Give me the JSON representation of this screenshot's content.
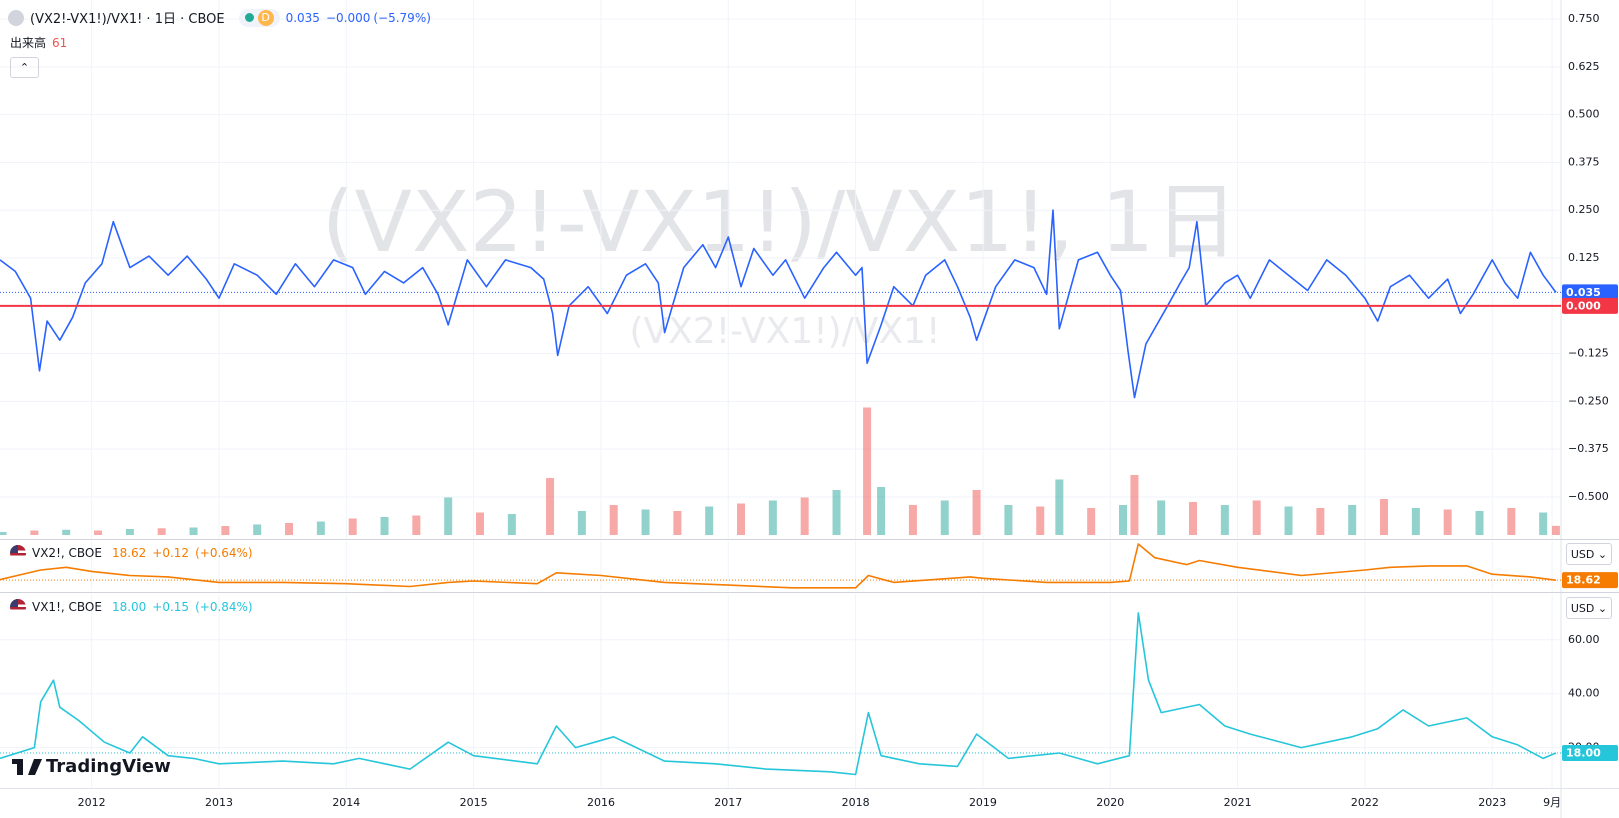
{
  "header": {
    "title": "(VX2!-VX1!)/VX1! · 1日 · CBOE",
    "interval_badge": "D",
    "last": "0.035",
    "change": "−0.000",
    "change_pct": "(−5.79%)",
    "volume_label": "出来高",
    "volume_last": "61"
  },
  "brand": "TradingView",
  "chart_data": [
    {
      "type": "line",
      "title": "(VX2!-VX1!)/VX1!, 1日",
      "x": [
        2011.28,
        2011.4,
        2011.52,
        2011.59,
        2011.65,
        2011.75,
        2011.85,
        2011.95,
        2012.08,
        2012.17,
        2012.3,
        2012.45,
        2012.6,
        2012.75,
        2012.9,
        2013.0,
        2013.12,
        2013.3,
        2013.45,
        2013.6,
        2013.75,
        2013.9,
        2014.05,
        2014.15,
        2014.3,
        2014.45,
        2014.6,
        2014.72,
        2014.8,
        2014.95,
        2015.1,
        2015.25,
        2015.45,
        2015.55,
        2015.62,
        2015.66,
        2015.75,
        2015.9,
        2016.05,
        2016.2,
        2016.35,
        2016.45,
        2016.5,
        2016.65,
        2016.8,
        2016.9,
        2017.0,
        2017.1,
        2017.2,
        2017.35,
        2017.45,
        2017.6,
        2017.75,
        2017.85,
        2018.0,
        2018.05,
        2018.09,
        2018.2,
        2018.3,
        2018.45,
        2018.55,
        2018.7,
        2018.8,
        2018.9,
        2018.95,
        2019.1,
        2019.25,
        2019.4,
        2019.5,
        2019.55,
        2019.6,
        2019.75,
        2019.9,
        2020.0,
        2020.08,
        2020.14,
        2020.19,
        2020.28,
        2020.45,
        2020.55,
        2020.62,
        2020.68,
        2020.75,
        2020.9,
        2021.0,
        2021.1,
        2021.25,
        2021.4,
        2021.55,
        2021.7,
        2021.85,
        2022.0,
        2022.1,
        2022.2,
        2022.35,
        2022.5,
        2022.65,
        2022.75,
        2022.85,
        2023.0,
        2023.1,
        2023.2,
        2023.3,
        2023.4,
        2023.5
      ],
      "xlim": [
        2011.28,
        2023.54
      ],
      "series": [
        {
          "name": "(VX2!-VX1!)/VX1!",
          "color": "#2962ff",
          "values": [
            0.12,
            0.09,
            0.02,
            -0.17,
            -0.04,
            -0.09,
            -0.03,
            0.06,
            0.11,
            0.22,
            0.1,
            0.13,
            0.08,
            0.13,
            0.07,
            0.02,
            0.11,
            0.08,
            0.03,
            0.11,
            0.05,
            0.12,
            0.1,
            0.03,
            0.09,
            0.06,
            0.1,
            0.03,
            -0.05,
            0.12,
            0.05,
            0.12,
            0.1,
            0.07,
            -0.02,
            -0.13,
            0.0,
            0.05,
            -0.02,
            0.08,
            0.11,
            0.06,
            -0.07,
            0.1,
            0.16,
            0.1,
            0.18,
            0.05,
            0.15,
            0.08,
            0.12,
            0.02,
            0.1,
            0.14,
            0.08,
            0.1,
            -0.15,
            -0.05,
            0.05,
            0.0,
            0.08,
            0.12,
            0.05,
            -0.03,
            -0.09,
            0.05,
            0.12,
            0.1,
            0.03,
            0.25,
            -0.06,
            0.12,
            0.14,
            0.08,
            0.04,
            -0.12,
            -0.24,
            -0.1,
            0.0,
            0.06,
            0.1,
            0.22,
            0.0,
            0.06,
            0.08,
            0.02,
            0.12,
            0.08,
            0.04,
            0.12,
            0.08,
            0.02,
            -0.04,
            0.05,
            0.08,
            0.02,
            0.07,
            -0.02,
            0.03,
            0.12,
            0.06,
            0.02,
            0.14,
            0.08,
            0.035
          ]
        }
      ],
      "ylim": [
        -0.61,
        0.8
      ],
      "yticks": [
        {
          "value": 0.75,
          "label": "0.750"
        },
        {
          "value": 0.625,
          "label": "0.625"
        },
        {
          "value": 0.5,
          "label": "0.500"
        },
        {
          "value": 0.375,
          "label": "0.375"
        },
        {
          "value": 0.25,
          "label": "0.250"
        },
        {
          "value": 0.125,
          "label": "0.125"
        },
        {
          "value": -0.125,
          "label": "−0.125"
        },
        {
          "value": -0.25,
          "label": "−0.250"
        },
        {
          "value": -0.375,
          "label": "−0.375"
        },
        {
          "value": -0.5,
          "label": "−0.500"
        }
      ],
      "hline": {
        "value": 0,
        "label": "0.000",
        "color": "#f23645"
      },
      "volume": {
        "name": "出来高",
        "up_color": "#26a69a",
        "down_color": "#ef5350",
        "ylim": [
          0,
          1000
        ],
        "x": [
          2011.3,
          2011.55,
          2011.8,
          2012.05,
          2012.3,
          2012.55,
          2012.8,
          2013.05,
          2013.3,
          2013.55,
          2013.8,
          2014.05,
          2014.3,
          2014.55,
          2014.8,
          2015.05,
          2015.3,
          2015.6,
          2015.85,
          2016.1,
          2016.35,
          2016.6,
          2016.85,
          2017.1,
          2017.35,
          2017.6,
          2017.85,
          2018.09,
          2018.2,
          2018.45,
          2018.7,
          2018.95,
          2019.2,
          2019.45,
          2019.6,
          2019.85,
          2020.1,
          2020.19,
          2020.4,
          2020.65,
          2020.9,
          2021.15,
          2021.4,
          2021.65,
          2021.9,
          2022.15,
          2022.4,
          2022.65,
          2022.9,
          2023.15,
          2023.4,
          2023.5
        ],
        "values": [
          20,
          30,
          35,
          30,
          40,
          45,
          50,
          60,
          70,
          80,
          90,
          110,
          120,
          130,
          250,
          150,
          140,
          380,
          160,
          200,
          170,
          160,
          190,
          210,
          230,
          250,
          300,
          850,
          320,
          200,
          230,
          300,
          200,
          190,
          370,
          180,
          200,
          400,
          230,
          220,
          200,
          230,
          190,
          180,
          200,
          240,
          180,
          170,
          160,
          180,
          150,
          61
        ]
      }
    },
    {
      "type": "line",
      "currency": "USD",
      "legend": {
        "last": "18.62",
        "change": "+0.12",
        "change_pct": "(+0.64%)"
      },
      "x": [
        2011.28,
        2011.6,
        2011.8,
        2012.0,
        2012.3,
        2012.6,
        2013.0,
        2013.5,
        2014.0,
        2014.5,
        2014.8,
        2015.0,
        2015.5,
        2015.65,
        2016.0,
        2016.5,
        2017.0,
        2017.5,
        2018.0,
        2018.1,
        2018.3,
        2018.9,
        2019.0,
        2019.5,
        2020.0,
        2020.15,
        2020.22,
        2020.35,
        2020.6,
        2020.7,
        2021.0,
        2021.5,
        2022.0,
        2022.2,
        2022.5,
        2022.8,
        2023.0,
        2023.3,
        2023.5
      ],
      "xlim": [
        2011.28,
        2023.54
      ],
      "series": [
        {
          "name": "VX2!, CBOE",
          "color": "#f57c00",
          "values": [
            19,
            26,
            28,
            25,
            22,
            21,
            17,
            17,
            16,
            14,
            17,
            18,
            16,
            24,
            22,
            17,
            15,
            13,
            13,
            22,
            17,
            21,
            20,
            17,
            17,
            18,
            45,
            35,
            30,
            33,
            28,
            22,
            26,
            28,
            29,
            29,
            23,
            21,
            18.62
          ]
        }
      ],
      "ylim": [
        10.7,
        47.2
      ]
    },
    {
      "type": "line",
      "currency": "USD",
      "legend": {
        "last": "18.00",
        "change": "+0.15",
        "change_pct": "(+0.84%)"
      },
      "x": [
        2011.28,
        2011.55,
        2011.6,
        2011.7,
        2011.75,
        2011.9,
        2012.1,
        2012.3,
        2012.4,
        2012.6,
        2012.8,
        2013.0,
        2013.5,
        2013.9,
        2014.1,
        2014.5,
        2014.8,
        2015.0,
        2015.5,
        2015.65,
        2015.8,
        2016.1,
        2016.5,
        2016.9,
        2017.3,
        2017.8,
        2018.0,
        2018.1,
        2018.2,
        2018.5,
        2018.8,
        2018.95,
        2019.2,
        2019.6,
        2019.9,
        2020.15,
        2020.22,
        2020.3,
        2020.4,
        2020.7,
        2020.9,
        2021.1,
        2021.5,
        2021.9,
        2022.1,
        2022.3,
        2022.5,
        2022.8,
        2023.0,
        2023.2,
        2023.4,
        2023.5
      ],
      "xlim": [
        2011.28,
        2023.54
      ],
      "series": [
        {
          "name": "VX1!, CBOE",
          "color": "#26c6da",
          "values": [
            16,
            20,
            37,
            45,
            35,
            30,
            22,
            18,
            24,
            17,
            16,
            14,
            15,
            14,
            16,
            12,
            22,
            17,
            14,
            28,
            20,
            24,
            15,
            14,
            12,
            11,
            10,
            33,
            17,
            14,
            13,
            25,
            16,
            18,
            14,
            17,
            70,
            45,
            33,
            36,
            28,
            25,
            20,
            24,
            27,
            34,
            28,
            31,
            24,
            21,
            16,
            18
          ]
        }
      ],
      "ylim": [
        5,
        77
      ],
      "yticks": [
        {
          "value": 60,
          "label": "60.00"
        },
        {
          "value": 40,
          "label": "40.00"
        },
        {
          "value": 20,
          "label": "20.00"
        }
      ],
      "xticks": [
        2012,
        2013,
        2014,
        2015,
        2016,
        2017,
        2018,
        2019,
        2020,
        2021,
        2022,
        2023,
        {
          "value": 2023.47,
          "label": "9月"
        }
      ]
    }
  ]
}
